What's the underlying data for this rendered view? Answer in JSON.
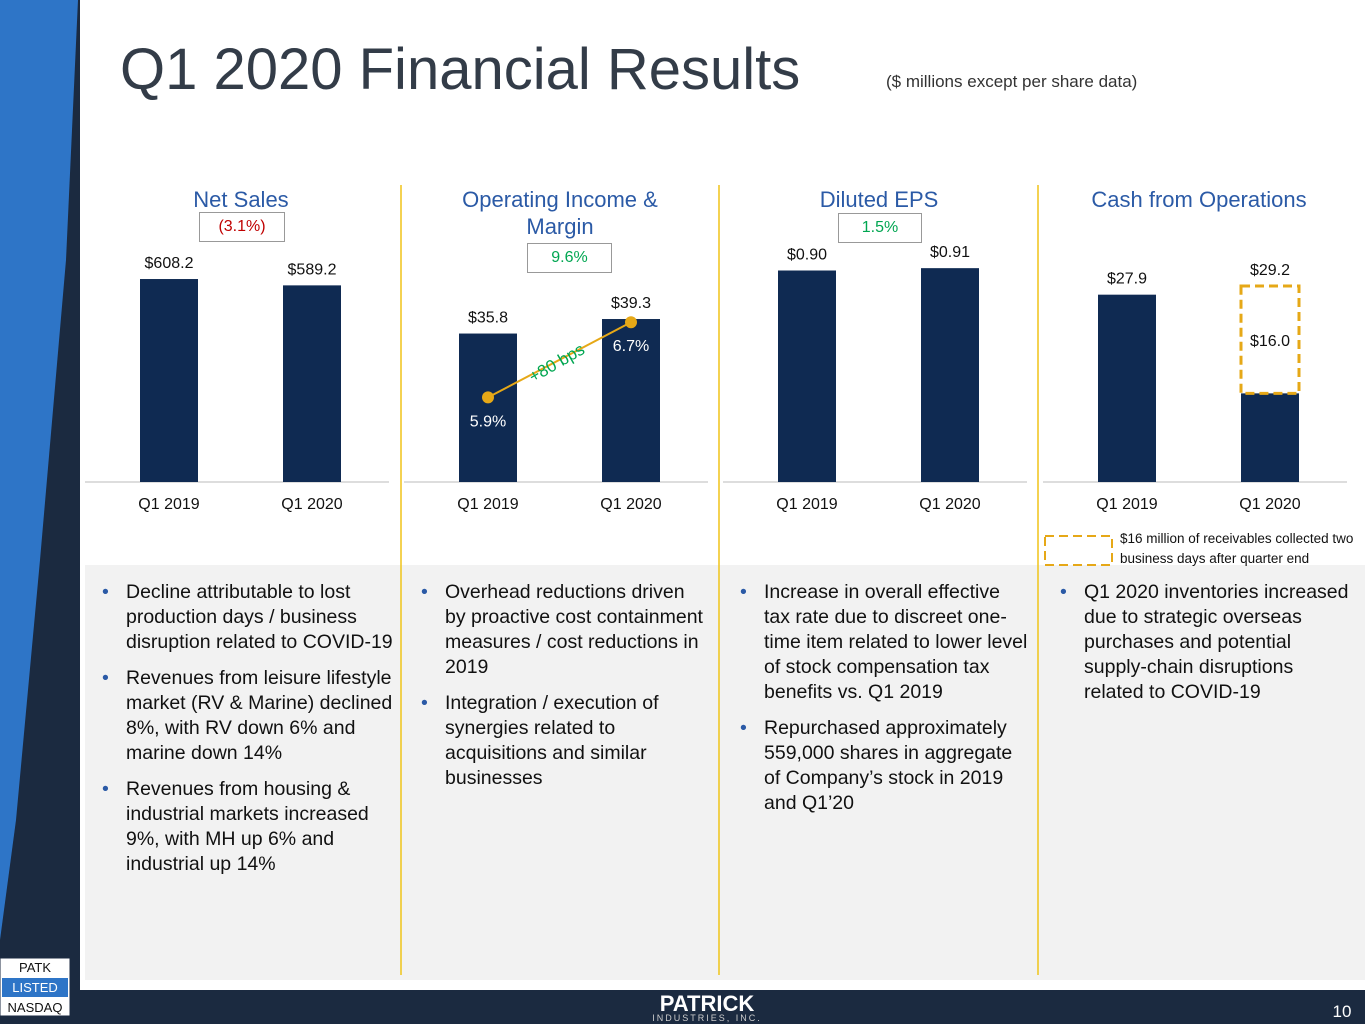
{
  "title": "Q1 2020 Financial Results",
  "subtitle": "($ millions except per share data)",
  "chart_data": [
    {
      "type": "bar",
      "title": "Net Sales",
      "annotation": "(3.1%)",
      "annotation_color": "#c00000",
      "categories": [
        "Q1 2019",
        "Q1 2020"
      ],
      "ylim": [
        0,
        845
      ],
      "series": [
        {
          "color": "#0f2a52",
          "values": [
            608.2,
            589.2
          ],
          "value_labels": [
            "$608.2",
            "$589.2"
          ]
        }
      ]
    },
    {
      "type": "bar",
      "title": "Operating Income & Margin",
      "annotation": "9.6%",
      "annotation_color": "#00a651",
      "change_label": "+80 bps",
      "categories": [
        "Q1 2019",
        "Q1 2020"
      ],
      "ylim": [
        0,
        68
      ],
      "y2lim": [
        5,
        8
      ],
      "series": [
        {
          "color": "#0f2a52",
          "values": [
            35.8,
            39.3
          ],
          "value_labels": [
            "$35.8",
            "$39.3"
          ]
        },
        {
          "type": "line",
          "axis": "y2",
          "color": "#e6a817",
          "values": [
            5.9,
            6.7
          ],
          "value_labels": [
            "5.9%",
            "6.7%"
          ]
        }
      ]
    },
    {
      "type": "bar",
      "title": "Diluted EPS",
      "annotation": "1.5%",
      "annotation_color": "#00a651",
      "categories": [
        "Q1 2019",
        "Q1 2020"
      ],
      "ylim": [
        0,
        1.2
      ],
      "series": [
        {
          "color": "#0f2a52",
          "values": [
            0.9,
            0.91
          ],
          "value_labels": [
            "$0.90",
            "$0.91"
          ]
        }
      ]
    },
    {
      "type": "stacked_bar",
      "title": "Cash from Operations",
      "categories": [
        "Q1 2019",
        "Q1 2020"
      ],
      "ylim": [
        0,
        42
      ],
      "totals": [
        27.9,
        29.2
      ],
      "total_labels": [
        "$27.9",
        "$29.2"
      ],
      "series": [
        {
          "color": "#0f2a52",
          "values": [
            27.9,
            13.2
          ]
        },
        {
          "name": "$16 million of receivables collected two business days after quarter end",
          "color": "#e6a817",
          "dashed": true,
          "values": [
            null,
            16.0
          ],
          "value_labels": [
            null,
            "$16.0"
          ]
        }
      ]
    }
  ],
  "bullets": [
    [
      "Decline attributable to lost production days / business disruption related to COVID-19",
      "Revenues from leisure lifestyle market (RV & Marine) declined 8%, with RV down 6% and marine down 14%",
      "Revenues from housing & industrial markets increased 9%, with MH up 6% and industrial up 14%"
    ],
    [
      "Overhead reductions driven by proactive cost containment measures / cost reductions in 2019",
      "Integration / execution of synergies related to acquisitions and similar businesses"
    ],
    [
      "Increase in overall effective tax rate due to discreet one-time item related to lower level of stock compensation tax benefits vs. Q1 2019",
      "Repurchased approximately 559,000 shares in aggregate of Company’s stock in 2019 and Q1’20"
    ],
    [
      "Q1 2020 inventories increased due to strategic overseas purchases and potential supply-chain disruptions related to COVID-19"
    ]
  ],
  "footer": {
    "ticker": "PATK",
    "listed": "LISTED",
    "exchange": "NASDAQ",
    "company": "PATRICK",
    "company_sub": "INDUSTRIES, INC.",
    "page": "10"
  }
}
